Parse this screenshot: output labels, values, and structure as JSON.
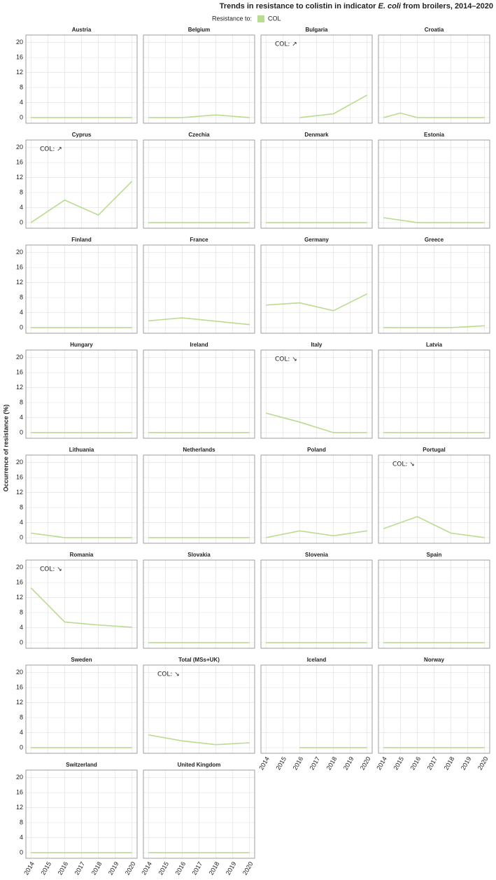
{
  "title": [
    "Trends in resistance to colistin in indicator ",
    "E. coli",
    " from broilers, 2014–2020"
  ],
  "legend": {
    "title": "Resistance to:",
    "name": "COL",
    "color": "#b9dc8f"
  },
  "ylabel": "Occurrence of resistance (%)",
  "chart_data": [
    {
      "type": "line",
      "title": "Austria",
      "x": [
        2014,
        2016,
        2018,
        2020
      ],
      "values": [
        0,
        0,
        0,
        0
      ],
      "color": "#b9dc8f",
      "xlim": [
        2013.7,
        2020.3
      ],
      "xticks": [
        2014,
        2015,
        2016,
        2017,
        2018,
        2019,
        2020
      ],
      "ylim": [
        -1.5,
        22
      ],
      "yticks": [
        0,
        4,
        8,
        12,
        16,
        20
      ]
    },
    {
      "type": "line",
      "title": "Belgium",
      "x": [
        2014,
        2016,
        2018,
        2020
      ],
      "values": [
        0,
        0,
        0.7,
        0
      ],
      "color": "#b9dc8f",
      "xlim": [
        2013.7,
        2020.3
      ],
      "xticks": [
        2014,
        2015,
        2016,
        2017,
        2018,
        2019,
        2020
      ],
      "ylim": [
        -1.5,
        22
      ],
      "yticks": [
        0,
        4,
        8,
        12,
        16,
        20
      ]
    },
    {
      "type": "line",
      "title": "Bulgaria",
      "annotation": "COL: ↗",
      "x": [
        2016,
        2018,
        2020
      ],
      "values": [
        0,
        1,
        6
      ],
      "color": "#b9dc8f",
      "xlim": [
        2013.7,
        2020.3
      ],
      "xticks": [
        2014,
        2015,
        2016,
        2017,
        2018,
        2019,
        2020
      ],
      "ylim": [
        -1.5,
        22
      ],
      "yticks": [
        0,
        4,
        8,
        12,
        16,
        20
      ]
    },
    {
      "type": "line",
      "title": "Croatia",
      "x": [
        2014,
        2015,
        2016,
        2018,
        2020
      ],
      "values": [
        0,
        1.2,
        0,
        0,
        0
      ],
      "color": "#b9dc8f",
      "xlim": [
        2013.7,
        2020.3
      ],
      "xticks": [
        2014,
        2015,
        2016,
        2017,
        2018,
        2019,
        2020
      ],
      "ylim": [
        -1.5,
        22
      ],
      "yticks": [
        0,
        4,
        8,
        12,
        16,
        20
      ]
    },
    {
      "type": "line",
      "title": "Cyprus",
      "annotation": "COL: ↗",
      "x": [
        2014,
        2016,
        2018,
        2020
      ],
      "values": [
        0,
        6,
        2,
        11
      ],
      "color": "#b9dc8f",
      "xlim": [
        2013.7,
        2020.3
      ],
      "xticks": [
        2014,
        2015,
        2016,
        2017,
        2018,
        2019,
        2020
      ],
      "ylim": [
        -1.5,
        22
      ],
      "yticks": [
        0,
        4,
        8,
        12,
        16,
        20
      ]
    },
    {
      "type": "line",
      "title": "Czechia",
      "x": [
        2014,
        2016,
        2018,
        2020
      ],
      "values": [
        0,
        0,
        0,
        0
      ],
      "color": "#b9dc8f",
      "xlim": [
        2013.7,
        2020.3
      ],
      "xticks": [
        2014,
        2015,
        2016,
        2017,
        2018,
        2019,
        2020
      ],
      "ylim": [
        -1.5,
        22
      ],
      "yticks": [
        0,
        4,
        8,
        12,
        16,
        20
      ]
    },
    {
      "type": "line",
      "title": "Denmark",
      "x": [
        2014,
        2016,
        2018,
        2020
      ],
      "values": [
        0,
        0,
        0,
        0
      ],
      "color": "#b9dc8f",
      "xlim": [
        2013.7,
        2020.3
      ],
      "xticks": [
        2014,
        2015,
        2016,
        2017,
        2018,
        2019,
        2020
      ],
      "ylim": [
        -1.5,
        22
      ],
      "yticks": [
        0,
        4,
        8,
        12,
        16,
        20
      ]
    },
    {
      "type": "line",
      "title": "Estonia",
      "x": [
        2014,
        2016,
        2018,
        2020
      ],
      "values": [
        1.3,
        0,
        0,
        0
      ],
      "color": "#b9dc8f",
      "xlim": [
        2013.7,
        2020.3
      ],
      "xticks": [
        2014,
        2015,
        2016,
        2017,
        2018,
        2019,
        2020
      ],
      "ylim": [
        -1.5,
        22
      ],
      "yticks": [
        0,
        4,
        8,
        12,
        16,
        20
      ]
    },
    {
      "type": "line",
      "title": "Finland",
      "x": [
        2014,
        2016,
        2018,
        2020
      ],
      "values": [
        0,
        0,
        0,
        0
      ],
      "color": "#b9dc8f",
      "xlim": [
        2013.7,
        2020.3
      ],
      "xticks": [
        2014,
        2015,
        2016,
        2017,
        2018,
        2019,
        2020
      ],
      "ylim": [
        -1.5,
        22
      ],
      "yticks": [
        0,
        4,
        8,
        12,
        16,
        20
      ]
    },
    {
      "type": "line",
      "title": "France",
      "x": [
        2014,
        2016,
        2018,
        2020
      ],
      "values": [
        1.8,
        2.6,
        1.7,
        0.8
      ],
      "color": "#b9dc8f",
      "xlim": [
        2013.7,
        2020.3
      ],
      "xticks": [
        2014,
        2015,
        2016,
        2017,
        2018,
        2019,
        2020
      ],
      "ylim": [
        -1.5,
        22
      ],
      "yticks": [
        0,
        4,
        8,
        12,
        16,
        20
      ]
    },
    {
      "type": "line",
      "title": "Germany",
      "x": [
        2014,
        2016,
        2018,
        2020
      ],
      "values": [
        6,
        6.6,
        4.5,
        9
      ],
      "color": "#b9dc8f",
      "xlim": [
        2013.7,
        2020.3
      ],
      "xticks": [
        2014,
        2015,
        2016,
        2017,
        2018,
        2019,
        2020
      ],
      "ylim": [
        -1.5,
        22
      ],
      "yticks": [
        0,
        4,
        8,
        12,
        16,
        20
      ]
    },
    {
      "type": "line",
      "title": "Greece",
      "x": [
        2014,
        2016,
        2018,
        2020
      ],
      "values": [
        0,
        0,
        0,
        0.5
      ],
      "color": "#b9dc8f",
      "xlim": [
        2013.7,
        2020.3
      ],
      "xticks": [
        2014,
        2015,
        2016,
        2017,
        2018,
        2019,
        2020
      ],
      "ylim": [
        -1.5,
        22
      ],
      "yticks": [
        0,
        4,
        8,
        12,
        16,
        20
      ]
    },
    {
      "type": "line",
      "title": "Hungary",
      "x": [
        2014,
        2016,
        2018,
        2020
      ],
      "values": [
        0,
        0,
        0,
        0
      ],
      "color": "#b9dc8f",
      "xlim": [
        2013.7,
        2020.3
      ],
      "xticks": [
        2014,
        2015,
        2016,
        2017,
        2018,
        2019,
        2020
      ],
      "ylim": [
        -1.5,
        22
      ],
      "yticks": [
        0,
        4,
        8,
        12,
        16,
        20
      ]
    },
    {
      "type": "line",
      "title": "Ireland",
      "x": [
        2014,
        2016,
        2018,
        2020
      ],
      "values": [
        0,
        0,
        0,
        0
      ],
      "color": "#b9dc8f",
      "xlim": [
        2013.7,
        2020.3
      ],
      "xticks": [
        2014,
        2015,
        2016,
        2017,
        2018,
        2019,
        2020
      ],
      "ylim": [
        -1.5,
        22
      ],
      "yticks": [
        0,
        4,
        8,
        12,
        16,
        20
      ]
    },
    {
      "type": "line",
      "title": "Italy",
      "annotation": "COL: ↘",
      "x": [
        2014,
        2016,
        2018,
        2020
      ],
      "values": [
        5.2,
        2.8,
        0,
        0
      ],
      "color": "#b9dc8f",
      "xlim": [
        2013.7,
        2020.3
      ],
      "xticks": [
        2014,
        2015,
        2016,
        2017,
        2018,
        2019,
        2020
      ],
      "ylim": [
        -1.5,
        22
      ],
      "yticks": [
        0,
        4,
        8,
        12,
        16,
        20
      ]
    },
    {
      "type": "line",
      "title": "Latvia",
      "x": [
        2014,
        2016,
        2018,
        2020
      ],
      "values": [
        0,
        0,
        0,
        0
      ],
      "color": "#b9dc8f",
      "xlim": [
        2013.7,
        2020.3
      ],
      "xticks": [
        2014,
        2015,
        2016,
        2017,
        2018,
        2019,
        2020
      ],
      "ylim": [
        -1.5,
        22
      ],
      "yticks": [
        0,
        4,
        8,
        12,
        16,
        20
      ]
    },
    {
      "type": "line",
      "title": "Lithuania",
      "x": [
        2014,
        2016,
        2018,
        2020
      ],
      "values": [
        1.2,
        0,
        0,
        0
      ],
      "color": "#b9dc8f",
      "xlim": [
        2013.7,
        2020.3
      ],
      "xticks": [
        2014,
        2015,
        2016,
        2017,
        2018,
        2019,
        2020
      ],
      "ylim": [
        -1.5,
        22
      ],
      "yticks": [
        0,
        4,
        8,
        12,
        16,
        20
      ]
    },
    {
      "type": "line",
      "title": "Netherlands",
      "x": [
        2014,
        2016,
        2018,
        2020
      ],
      "values": [
        0,
        0,
        0,
        0
      ],
      "color": "#b9dc8f",
      "xlim": [
        2013.7,
        2020.3
      ],
      "xticks": [
        2014,
        2015,
        2016,
        2017,
        2018,
        2019,
        2020
      ],
      "ylim": [
        -1.5,
        22
      ],
      "yticks": [
        0,
        4,
        8,
        12,
        16,
        20
      ]
    },
    {
      "type": "line",
      "title": "Poland",
      "x": [
        2014,
        2016,
        2018,
        2020
      ],
      "values": [
        0,
        1.8,
        0.5,
        1.8
      ],
      "color": "#b9dc8f",
      "xlim": [
        2013.7,
        2020.3
      ],
      "xticks": [
        2014,
        2015,
        2016,
        2017,
        2018,
        2019,
        2020
      ],
      "ylim": [
        -1.5,
        22
      ],
      "yticks": [
        0,
        4,
        8,
        12,
        16,
        20
      ]
    },
    {
      "type": "line",
      "title": "Portugal",
      "annotation": "COL: ↘",
      "x": [
        2014,
        2016,
        2018,
        2020
      ],
      "values": [
        2.4,
        5.6,
        1.2,
        0
      ],
      "color": "#b9dc8f",
      "xlim": [
        2013.7,
        2020.3
      ],
      "xticks": [
        2014,
        2015,
        2016,
        2017,
        2018,
        2019,
        2020
      ],
      "ylim": [
        -1.5,
        22
      ],
      "yticks": [
        0,
        4,
        8,
        12,
        16,
        20
      ]
    },
    {
      "type": "line",
      "title": "Romania",
      "annotation": "COL: ↘",
      "x": [
        2014,
        2016,
        2018,
        2020
      ],
      "values": [
        14.6,
        5.5,
        4.7,
        4.1
      ],
      "color": "#b9dc8f",
      "xlim": [
        2013.7,
        2020.3
      ],
      "xticks": [
        2014,
        2015,
        2016,
        2017,
        2018,
        2019,
        2020
      ],
      "ylim": [
        -1.5,
        22
      ],
      "yticks": [
        0,
        4,
        8,
        12,
        16,
        20
      ]
    },
    {
      "type": "line",
      "title": "Slovakia",
      "x": [
        2014,
        2016,
        2018,
        2020
      ],
      "values": [
        0,
        0,
        0,
        0
      ],
      "color": "#b9dc8f",
      "xlim": [
        2013.7,
        2020.3
      ],
      "xticks": [
        2014,
        2015,
        2016,
        2017,
        2018,
        2019,
        2020
      ],
      "ylim": [
        -1.5,
        22
      ],
      "yticks": [
        0,
        4,
        8,
        12,
        16,
        20
      ]
    },
    {
      "type": "line",
      "title": "Slovenia",
      "x": [
        2014,
        2016,
        2018,
        2020
      ],
      "values": [
        0,
        0,
        0,
        0
      ],
      "color": "#b9dc8f",
      "xlim": [
        2013.7,
        2020.3
      ],
      "xticks": [
        2014,
        2015,
        2016,
        2017,
        2018,
        2019,
        2020
      ],
      "ylim": [
        -1.5,
        22
      ],
      "yticks": [
        0,
        4,
        8,
        12,
        16,
        20
      ]
    },
    {
      "type": "line",
      "title": "Spain",
      "x": [
        2014,
        2016,
        2018,
        2020
      ],
      "values": [
        0,
        0,
        0,
        0
      ],
      "color": "#b9dc8f",
      "xlim": [
        2013.7,
        2020.3
      ],
      "xticks": [
        2014,
        2015,
        2016,
        2017,
        2018,
        2019,
        2020
      ],
      "ylim": [
        -1.5,
        22
      ],
      "yticks": [
        0,
        4,
        8,
        12,
        16,
        20
      ]
    },
    {
      "type": "line",
      "title": "Sweden",
      "x": [
        2014,
        2016,
        2018,
        2020
      ],
      "values": [
        0,
        0,
        0,
        0
      ],
      "color": "#b9dc8f",
      "xlim": [
        2013.7,
        2020.3
      ],
      "xticks": [
        2014,
        2015,
        2016,
        2017,
        2018,
        2019,
        2020
      ],
      "ylim": [
        -1.5,
        22
      ],
      "yticks": [
        0,
        4,
        8,
        12,
        16,
        20
      ]
    },
    {
      "type": "line",
      "title": "Total (MSs+UK)",
      "annotation": "COL: ↘",
      "x": [
        2014,
        2016,
        2018,
        2020
      ],
      "values": [
        3.4,
        1.8,
        0.8,
        1.3
      ],
      "color": "#b9dc8f",
      "xlim": [
        2013.7,
        2020.3
      ],
      "xticks": [
        2014,
        2015,
        2016,
        2017,
        2018,
        2019,
        2020
      ],
      "ylim": [
        -1.5,
        22
      ],
      "yticks": [
        0,
        4,
        8,
        12,
        16,
        20
      ]
    },
    {
      "type": "line",
      "title": "Iceland",
      "x": [
        2016,
        2018,
        2020
      ],
      "values": [
        0,
        0,
        0
      ],
      "color": "#b9dc8f",
      "xlim": [
        2013.7,
        2020.3
      ],
      "xticks": [
        2014,
        2015,
        2016,
        2017,
        2018,
        2019,
        2020
      ],
      "ylim": [
        -1.5,
        22
      ],
      "yticks": [
        0,
        4,
        8,
        12,
        16,
        20
      ]
    },
    {
      "type": "line",
      "title": "Norway",
      "x": [
        2014,
        2016,
        2018,
        2020
      ],
      "values": [
        0,
        0,
        0,
        0
      ],
      "color": "#b9dc8f",
      "xlim": [
        2013.7,
        2020.3
      ],
      "xticks": [
        2014,
        2015,
        2016,
        2017,
        2018,
        2019,
        2020
      ],
      "ylim": [
        -1.5,
        22
      ],
      "yticks": [
        0,
        4,
        8,
        12,
        16,
        20
      ]
    },
    {
      "type": "line",
      "title": "Switzerland",
      "x": [
        2014,
        2016,
        2018,
        2020
      ],
      "values": [
        0,
        0,
        0,
        0
      ],
      "color": "#b9dc8f",
      "xlim": [
        2013.7,
        2020.3
      ],
      "xticks": [
        2014,
        2015,
        2016,
        2017,
        2018,
        2019,
        2020
      ],
      "ylim": [
        -1.5,
        22
      ],
      "yticks": [
        0,
        4,
        8,
        12,
        16,
        20
      ]
    },
    {
      "type": "line",
      "title": "United Kingdom",
      "x": [
        2014,
        2016,
        2018,
        2020
      ],
      "values": [
        0,
        0,
        0,
        0
      ],
      "color": "#b9dc8f",
      "xlim": [
        2013.7,
        2020.3
      ],
      "xticks": [
        2014,
        2015,
        2016,
        2017,
        2018,
        2019,
        2020
      ],
      "ylim": [
        -1.5,
        22
      ],
      "yticks": [
        0,
        4,
        8,
        12,
        16,
        20
      ]
    }
  ]
}
